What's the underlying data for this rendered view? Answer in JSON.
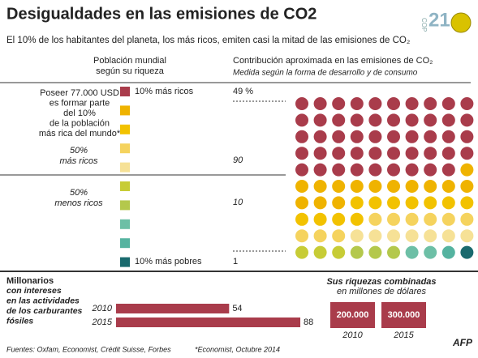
{
  "title": "Desigualdades en las emisiones de CO2",
  "logo": {
    "text": "COP",
    "number": "21"
  },
  "subtitle": "El 10% de los habitantes del planeta, los más ricos, emiten casi la mitad de las emisiones de CO₂",
  "chart_data": [
    {
      "type": "waffle",
      "left_header": [
        "Población mundial",
        "según su riqueza"
      ],
      "right_header": "Contribución aproximada en las emisiones de CO₂",
      "right_subheader": "Medida según la forma de desarrollo y de consumo",
      "note": [
        "Poseer 77.000 USD",
        "es formar parte",
        "del 10%",
        "de la población",
        "más rica del mundo*"
      ],
      "group_labels": [
        [
          "50%",
          "más ricos"
        ],
        [
          "50%",
          "menos ricos"
        ]
      ],
      "deciles": [
        {
          "color": "#a93c4b",
          "value": 49
        },
        {
          "color": "#efb300",
          "value": 14
        },
        {
          "color": "#f2c200",
          "value": 11
        },
        {
          "color": "#f5d35e",
          "value": 9
        },
        {
          "color": "#f6e196",
          "value": 7
        },
        {
          "color": "#c7cc36",
          "value": 3
        },
        {
          "color": "#b4c84c",
          "value": 3
        },
        {
          "color": "#6dbfa6",
          "value": 2
        },
        {
          "color": "#55b3a0",
          "value": 1
        },
        {
          "color": "#1a6a6e",
          "value": 1
        }
      ],
      "annotations": [
        {
          "name": "10% más ricos",
          "value": 49,
          "value_label": "49 %"
        },
        {
          "value": 90
        },
        {
          "value": 10
        },
        {
          "name": "10% más pobres",
          "value": 1
        }
      ]
    },
    {
      "type": "bar",
      "title": "Millonarios",
      "subtitle": [
        "con intereses",
        "en las actividades",
        "de los carburantes",
        "fósiles"
      ],
      "categories": [
        "2010",
        "2015"
      ],
      "values": [
        54,
        88
      ],
      "color": "#a93c4b"
    },
    {
      "type": "boxes",
      "title": [
        "Sus riquezas combinadas",
        "en millones de dólares"
      ],
      "categories": [
        "2010",
        "2015"
      ],
      "values": [
        200000,
        300000
      ],
      "value_labels": [
        "200.000",
        "300.000"
      ],
      "color": "#a93c4b"
    }
  ],
  "footer": {
    "sources": "Fuentes: Oxfam, Economist, Crédit Suisse, Forbes",
    "note": "*Economist, Octubre 2014",
    "agency": "AFP"
  }
}
